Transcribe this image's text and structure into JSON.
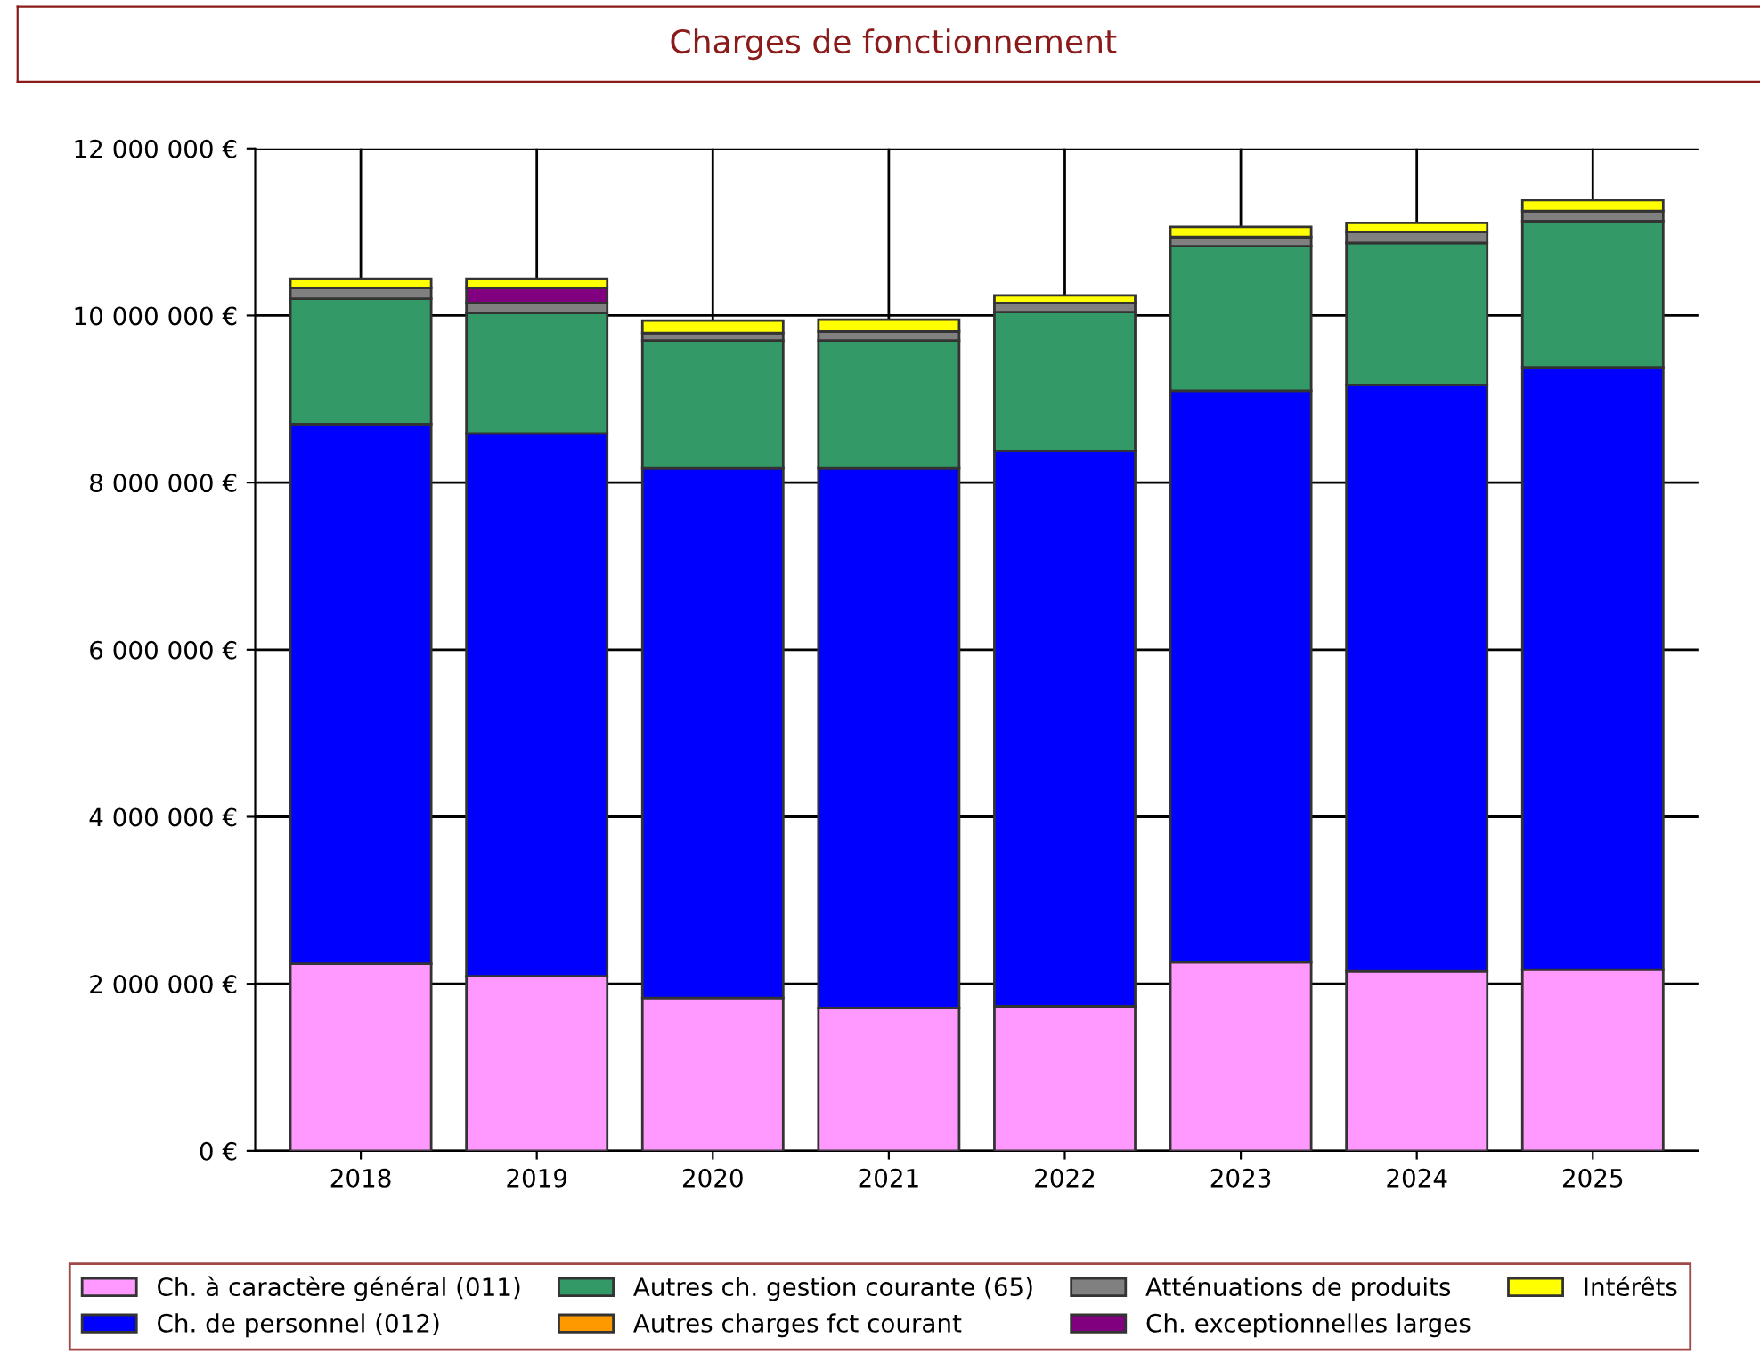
{
  "chart_data": {
    "type": "bar",
    "title": "Charges de fonctionnement",
    "stacked": true,
    "categories": [
      "2018",
      "2019",
      "2020",
      "2021",
      "2022",
      "2023",
      "2024",
      "2025"
    ],
    "series": [
      {
        "name": "Ch. à caractère général (011)",
        "color": "#ff99ff",
        "values": [
          2240000,
          2090000,
          1830000,
          1710000,
          1730000,
          2260000,
          2150000,
          2170000
        ]
      },
      {
        "name": "Ch. de personnel (012)",
        "color": "#0000ff",
        "values": [
          6460000,
          6500000,
          6340000,
          6460000,
          6650000,
          6840000,
          7020000,
          7210000
        ]
      },
      {
        "name": "Autres ch. gestion courante (65)",
        "color": "#339966",
        "values": [
          1500000,
          1440000,
          1530000,
          1530000,
          1660000,
          1730000,
          1700000,
          1750000
        ]
      },
      {
        "name": "Autres charges fct courant",
        "color": "#ff9900",
        "values": [
          null,
          null,
          null,
          null,
          null,
          null,
          null,
          null
        ]
      },
      {
        "name": "Atténuations de produits",
        "color": "#808080",
        "values": [
          130000,
          120000,
          90000,
          110000,
          110000,
          110000,
          130000,
          120000
        ]
      },
      {
        "name": "Ch. exceptionnelles larges",
        "color": "#800080",
        "values": [
          0,
          180000,
          0,
          0,
          0,
          0,
          0,
          0
        ]
      },
      {
        "name": "Intérêts",
        "color": "#ffff00",
        "values": [
          110000,
          110000,
          150000,
          140000,
          90000,
          120000,
          110000,
          130000
        ]
      }
    ],
    "ylim": [
      0,
      12000000
    ],
    "yticks": [
      {
        "value": 0,
        "label": "0 €"
      },
      {
        "value": 2000000,
        "label": "2 000 000 €"
      },
      {
        "value": 4000000,
        "label": "4 000 000 €"
      },
      {
        "value": 6000000,
        "label": "6 000 000 €"
      },
      {
        "value": 8000000,
        "label": "8 000 000 €"
      },
      {
        "value": 10000000,
        "label": "10 000 000 €"
      },
      {
        "value": 12000000,
        "label": "12 000 000 €"
      }
    ],
    "grid": true,
    "legend": "bottom"
  }
}
